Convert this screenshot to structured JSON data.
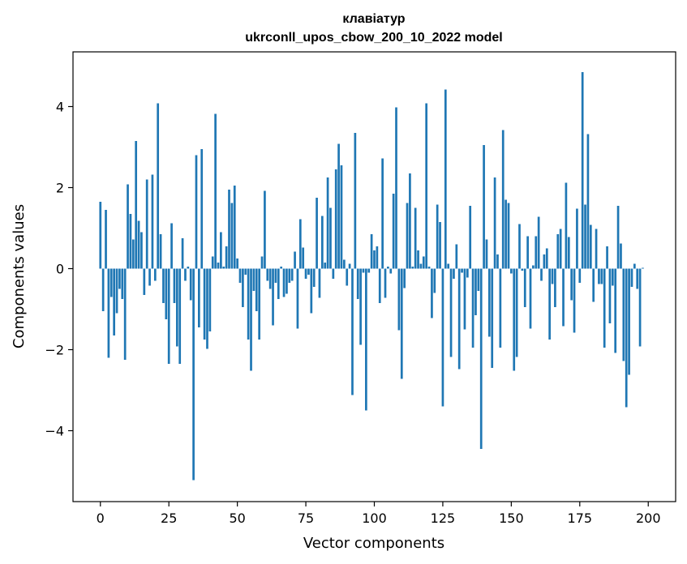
{
  "chart_data": {
    "type": "bar",
    "title_line1": "клавіатур",
    "title_line2": "ukrconll_upos_cbow_200_10_2022 model",
    "xlabel": "Vector components",
    "ylabel": "Components values",
    "xlim": [
      -10,
      210
    ],
    "ylim": [
      -5.75,
      5.35
    ],
    "x_ticks": [
      0,
      25,
      50,
      75,
      100,
      125,
      150,
      175,
      200
    ],
    "x_tick_labels": [
      "0",
      "25",
      "50",
      "75",
      "100",
      "125",
      "150",
      "175",
      "200"
    ],
    "y_ticks": [
      -4,
      -2,
      0,
      2,
      4
    ],
    "y_tick_labels": [
      "−4",
      "−2",
      "0",
      "2",
      "4"
    ],
    "bar_color": "#1f77b4",
    "grid": false,
    "values": [
      1.65,
      -1.05,
      1.45,
      -2.2,
      -0.7,
      -1.65,
      -1.1,
      -0.5,
      -0.75,
      -2.25,
      2.08,
      1.35,
      0.72,
      3.15,
      1.18,
      0.9,
      -0.65,
      2.2,
      -0.42,
      2.32,
      -0.3,
      4.08,
      0.85,
      -0.85,
      -1.25,
      -2.35,
      1.12,
      -0.85,
      -1.92,
      -2.35,
      0.75,
      -0.3,
      0.05,
      -0.78,
      -5.22,
      2.8,
      -1.45,
      2.95,
      -1.75,
      -1.98,
      -1.55,
      0.3,
      3.82,
      0.15,
      0.9,
      0.05,
      0.55,
      1.95,
      1.62,
      2.05,
      0.25,
      -0.35,
      -0.95,
      -0.15,
      -1.75,
      -2.52,
      -0.55,
      -1.05,
      -1.75,
      0.3,
      1.92,
      -0.3,
      -0.5,
      -1.4,
      -0.35,
      -0.75,
      0.05,
      -0.7,
      -0.62,
      -0.35,
      -0.3,
      0.42,
      -1.48,
      1.22,
      0.52,
      -0.25,
      -0.15,
      -1.1,
      -0.45,
      1.75,
      -0.72,
      1.3,
      0.15,
      2.25,
      1.5,
      -0.25,
      2.45,
      3.08,
      2.55,
      0.22,
      -0.42,
      0.12,
      -3.12,
      3.35,
      -0.75,
      -1.88,
      -0.1,
      -3.5,
      -0.1,
      0.85,
      0.45,
      0.55,
      -0.85,
      2.72,
      -0.72,
      0.05,
      -0.12,
      1.85,
      3.98,
      -1.52,
      -2.72,
      -0.48,
      1.62,
      2.35,
      0.05,
      1.5,
      0.45,
      0.12,
      0.3,
      4.08,
      0.05,
      -1.22,
      -0.6,
      1.58,
      1.15,
      -3.4,
      4.42,
      0.12,
      -2.18,
      -0.25,
      0.6,
      -2.48,
      -0.1,
      -1.5,
      -0.22,
      1.55,
      -1.95,
      -1.15,
      -0.55,
      -4.45,
      3.05,
      0.72,
      -1.68,
      -2.45,
      2.25,
      0.35,
      -1.95,
      3.42,
      1.7,
      1.62,
      -0.12,
      -2.52,
      -2.18,
      1.1,
      -0.05,
      -0.95,
      0.8,
      -1.48,
      0.08,
      0.8,
      1.28,
      -0.3,
      0.35,
      0.5,
      -1.75,
      -0.38,
      -0.95,
      0.85,
      0.98,
      -1.42,
      2.12,
      0.78,
      -0.78,
      -1.58,
      1.48,
      -0.35,
      4.85,
      1.58,
      3.32,
      1.08,
      -0.82,
      0.98,
      -0.38,
      -0.38,
      -1.95,
      0.55,
      -1.35,
      -0.42,
      -2.08,
      1.55,
      0.62,
      -2.28,
      -3.42,
      -2.62,
      -0.45,
      0.12,
      -0.5,
      -1.92,
      0.02
    ]
  }
}
